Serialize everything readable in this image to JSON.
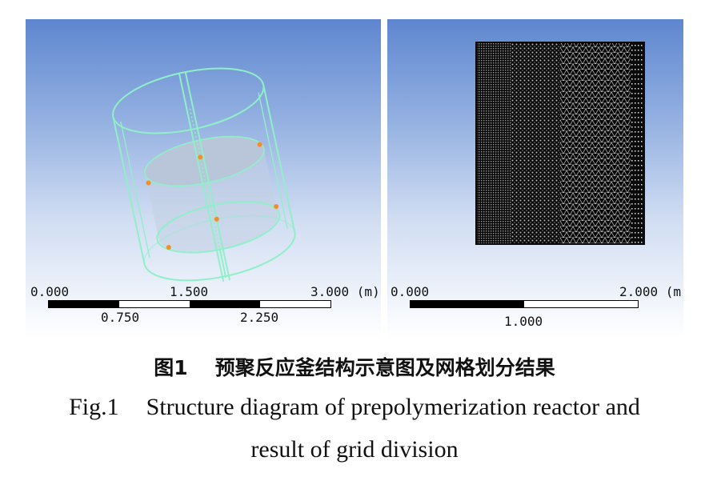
{
  "left_panel": {
    "scale": {
      "top_labels": [
        "0.000",
        "1.500",
        "3.000 (m)"
      ],
      "bottom_labels": [
        "0.750",
        "2.250"
      ]
    }
  },
  "right_panel": {
    "scale": {
      "top_labels": [
        "0.000",
        "2.000 (m)"
      ],
      "bottom_labels": [
        "1.000"
      ]
    }
  },
  "caption": {
    "cn_number": "图1",
    "cn_title": "预聚反应釜结构示意图及网格划分结果",
    "en_number": "Fig.1",
    "en_title_line1": "Structure diagram of prepolymerization reactor and",
    "en_title_line2": "result of grid division"
  },
  "colors": {
    "wireframe": "#8ff0c8",
    "marker": "#f0902a",
    "mesh_background": "#0a0a0a",
    "mesh_nodes": "#e8e8e8"
  }
}
